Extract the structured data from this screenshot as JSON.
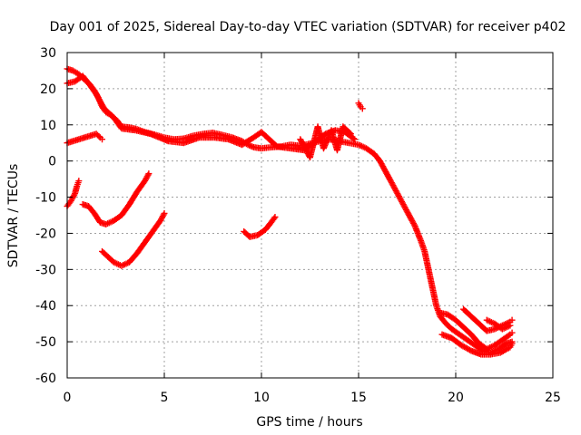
{
  "chart_data": {
    "type": "scatter",
    "title": "Day 001 of 2025, Sidereal Day-to-day VTEC variation (SDTVAR) for receiver p402",
    "xlabel": "GPS time / hours",
    "ylabel": "SDTVAR / TECUs",
    "xlim": [
      0,
      25
    ],
    "ylim": [
      -60,
      30
    ],
    "xticks": [
      0,
      5,
      10,
      15,
      20,
      25
    ],
    "yticks": [
      -60,
      -50,
      -40,
      -30,
      -20,
      -10,
      0,
      10,
      20,
      30
    ],
    "grid": true,
    "marker": "+",
    "color": "#ff0000",
    "series": [
      {
        "name": "arc-main",
        "points": [
          [
            0.0,
            25.5
          ],
          [
            0.3,
            25.0
          ],
          [
            0.6,
            24.0
          ],
          [
            0.9,
            22.5
          ],
          [
            1.2,
            21.0
          ],
          [
            1.4,
            19.5
          ],
          [
            1.6,
            17.5
          ],
          [
            1.8,
            15.0
          ],
          [
            2.0,
            13.5
          ],
          [
            2.3,
            12.5
          ],
          [
            2.6,
            11.0
          ],
          [
            2.8,
            9.5
          ],
          [
            3.2,
            9.3
          ],
          [
            3.6,
            8.8
          ],
          [
            4.0,
            8.0
          ],
          [
            4.5,
            7.3
          ],
          [
            5.0,
            6.5
          ],
          [
            5.5,
            6.0
          ],
          [
            6.0,
            6.2
          ],
          [
            6.5,
            7.0
          ],
          [
            7.0,
            7.5
          ],
          [
            7.5,
            7.8
          ],
          [
            8.0,
            7.2
          ],
          [
            8.5,
            6.5
          ],
          [
            9.0,
            5.5
          ],
          [
            9.3,
            4.5
          ],
          [
            9.6,
            3.8
          ],
          [
            10.0,
            3.5
          ],
          [
            10.5,
            3.8
          ],
          [
            11.0,
            4.0
          ],
          [
            11.5,
            4.5
          ],
          [
            12.0,
            4.2
          ],
          [
            12.5,
            4.8
          ],
          [
            13.0,
            5.5
          ],
          [
            13.5,
            6.0
          ],
          [
            14.0,
            5.5
          ],
          [
            14.5,
            5.0
          ],
          [
            15.0,
            4.5
          ],
          [
            15.4,
            3.5
          ],
          [
            15.8,
            2.0
          ],
          [
            16.1,
            0.0
          ],
          [
            16.4,
            -3.0
          ],
          [
            16.7,
            -6.0
          ],
          [
            17.0,
            -9.0
          ],
          [
            17.3,
            -12.0
          ],
          [
            17.6,
            -15.0
          ],
          [
            17.9,
            -18.0
          ],
          [
            18.2,
            -22.0
          ],
          [
            18.4,
            -25.0
          ],
          [
            18.6,
            -30.0
          ],
          [
            18.8,
            -35.0
          ],
          [
            19.0,
            -40.0
          ],
          [
            19.2,
            -43.0
          ],
          [
            19.5,
            -45.0
          ],
          [
            19.8,
            -46.5
          ],
          [
            20.2,
            -48.0
          ],
          [
            20.6,
            -49.5
          ],
          [
            21.0,
            -51.0
          ],
          [
            21.4,
            -52.5
          ],
          [
            21.8,
            -53.0
          ],
          [
            22.2,
            -52.0
          ],
          [
            22.6,
            -50.5
          ],
          [
            22.9,
            -50.0
          ]
        ]
      },
      {
        "name": "arc-main-b",
        "points": [
          [
            0.0,
            21.5
          ],
          [
            0.4,
            22.0
          ],
          [
            0.8,
            23.5
          ],
          [
            1.1,
            21.5
          ],
          [
            1.5,
            18.5
          ],
          [
            1.9,
            14.5
          ],
          [
            2.4,
            12.0
          ],
          [
            2.8,
            9.0
          ],
          [
            3.5,
            8.5
          ],
          [
            4.3,
            7.5
          ],
          [
            5.2,
            5.5
          ],
          [
            6.0,
            5.0
          ],
          [
            6.8,
            6.5
          ],
          [
            7.6,
            6.5
          ],
          [
            8.3,
            6.0
          ],
          [
            9.0,
            4.5
          ],
          [
            9.6,
            6.5
          ],
          [
            10.0,
            8.0
          ],
          [
            10.3,
            6.5
          ],
          [
            10.8,
            4.0
          ],
          [
            11.5,
            3.5
          ],
          [
            12.2,
            3.0
          ],
          [
            12.8,
            5.5
          ],
          [
            13.3,
            7.5
          ],
          [
            13.8,
            8.5
          ],
          [
            14.3,
            8.0
          ],
          [
            14.8,
            6.0
          ]
        ]
      },
      {
        "name": "arc-end-b",
        "points": [
          [
            19.2,
            -42.0
          ],
          [
            19.6,
            -42.5
          ],
          [
            20.0,
            -44.0
          ],
          [
            20.4,
            -46.0
          ],
          [
            20.8,
            -48.0
          ],
          [
            21.2,
            -50.5
          ],
          [
            21.6,
            -52.0
          ],
          [
            22.0,
            -51.0
          ],
          [
            22.4,
            -49.5
          ],
          [
            22.8,
            -48.0
          ],
          [
            22.9,
            -47.5
          ]
        ]
      },
      {
        "name": "arc-end-c",
        "points": [
          [
            20.4,
            -41.0
          ],
          [
            20.8,
            -43.0
          ],
          [
            21.2,
            -45.0
          ],
          [
            21.6,
            -47.0
          ],
          [
            22.0,
            -46.5
          ],
          [
            22.4,
            -45.5
          ],
          [
            22.8,
            -44.5
          ],
          [
            22.9,
            -44.0
          ]
        ]
      },
      {
        "name": "arc-end-d",
        "points": [
          [
            19.3,
            -48.0
          ],
          [
            19.8,
            -49.0
          ],
          [
            20.3,
            -51.0
          ],
          [
            20.8,
            -52.5
          ],
          [
            21.3,
            -53.5
          ],
          [
            21.8,
            -53.5
          ],
          [
            22.3,
            -53.0
          ],
          [
            22.8,
            -51.5
          ],
          [
            22.9,
            -50.5
          ]
        ]
      },
      {
        "name": "arc-end-e",
        "points": [
          [
            21.6,
            -44.0
          ],
          [
            22.0,
            -45.0
          ],
          [
            22.4,
            -46.5
          ],
          [
            22.8,
            -45.5
          ]
        ]
      },
      {
        "name": "arc-spike",
        "points": [
          [
            15.0,
            16.0
          ],
          [
            15.1,
            15.0
          ],
          [
            15.2,
            14.5
          ]
        ]
      },
      {
        "name": "arc-early",
        "points": [
          [
            0.0,
            5.0
          ],
          [
            0.3,
            5.5
          ],
          [
            0.6,
            6.0
          ],
          [
            0.9,
            6.5
          ],
          [
            1.2,
            7.0
          ],
          [
            1.5,
            7.5
          ],
          [
            1.7,
            6.5
          ],
          [
            1.8,
            6.0
          ]
        ]
      },
      {
        "name": "arc-a",
        "points": [
          [
            0.0,
            -12.5
          ],
          [
            0.2,
            -11.0
          ],
          [
            0.4,
            -9.0
          ],
          [
            0.5,
            -7.0
          ],
          [
            0.6,
            -5.5
          ]
        ]
      },
      {
        "name": "arc-b",
        "points": [
          [
            0.8,
            -12.0
          ],
          [
            1.1,
            -12.5
          ],
          [
            1.4,
            -14.5
          ],
          [
            1.7,
            -17.0
          ],
          [
            2.0,
            -17.5
          ],
          [
            2.4,
            -16.5
          ],
          [
            2.8,
            -15.0
          ],
          [
            3.2,
            -12.0
          ],
          [
            3.6,
            -8.5
          ],
          [
            4.0,
            -5.5
          ],
          [
            4.2,
            -3.5
          ]
        ]
      },
      {
        "name": "arc-c",
        "points": [
          [
            1.8,
            -25.0
          ],
          [
            2.1,
            -26.5
          ],
          [
            2.4,
            -28.0
          ],
          [
            2.8,
            -29.0
          ],
          [
            3.2,
            -28.0
          ],
          [
            3.6,
            -25.5
          ],
          [
            4.0,
            -22.5
          ],
          [
            4.4,
            -19.5
          ],
          [
            4.8,
            -16.5
          ],
          [
            5.0,
            -14.5
          ]
        ]
      },
      {
        "name": "arc-d",
        "points": [
          [
            9.1,
            -19.5
          ],
          [
            9.4,
            -21.0
          ],
          [
            9.8,
            -20.5
          ],
          [
            10.2,
            -19.0
          ],
          [
            10.5,
            -17.0
          ],
          [
            10.7,
            -15.5
          ]
        ]
      },
      {
        "name": "arc-scatter",
        "points": [
          [
            12.0,
            6.0
          ],
          [
            12.5,
            1.0
          ],
          [
            12.9,
            9.5
          ],
          [
            13.2,
            3.5
          ],
          [
            13.6,
            8.5
          ],
          [
            13.9,
            3.0
          ],
          [
            14.2,
            9.5
          ],
          [
            14.6,
            7.5
          ]
        ]
      }
    ]
  }
}
